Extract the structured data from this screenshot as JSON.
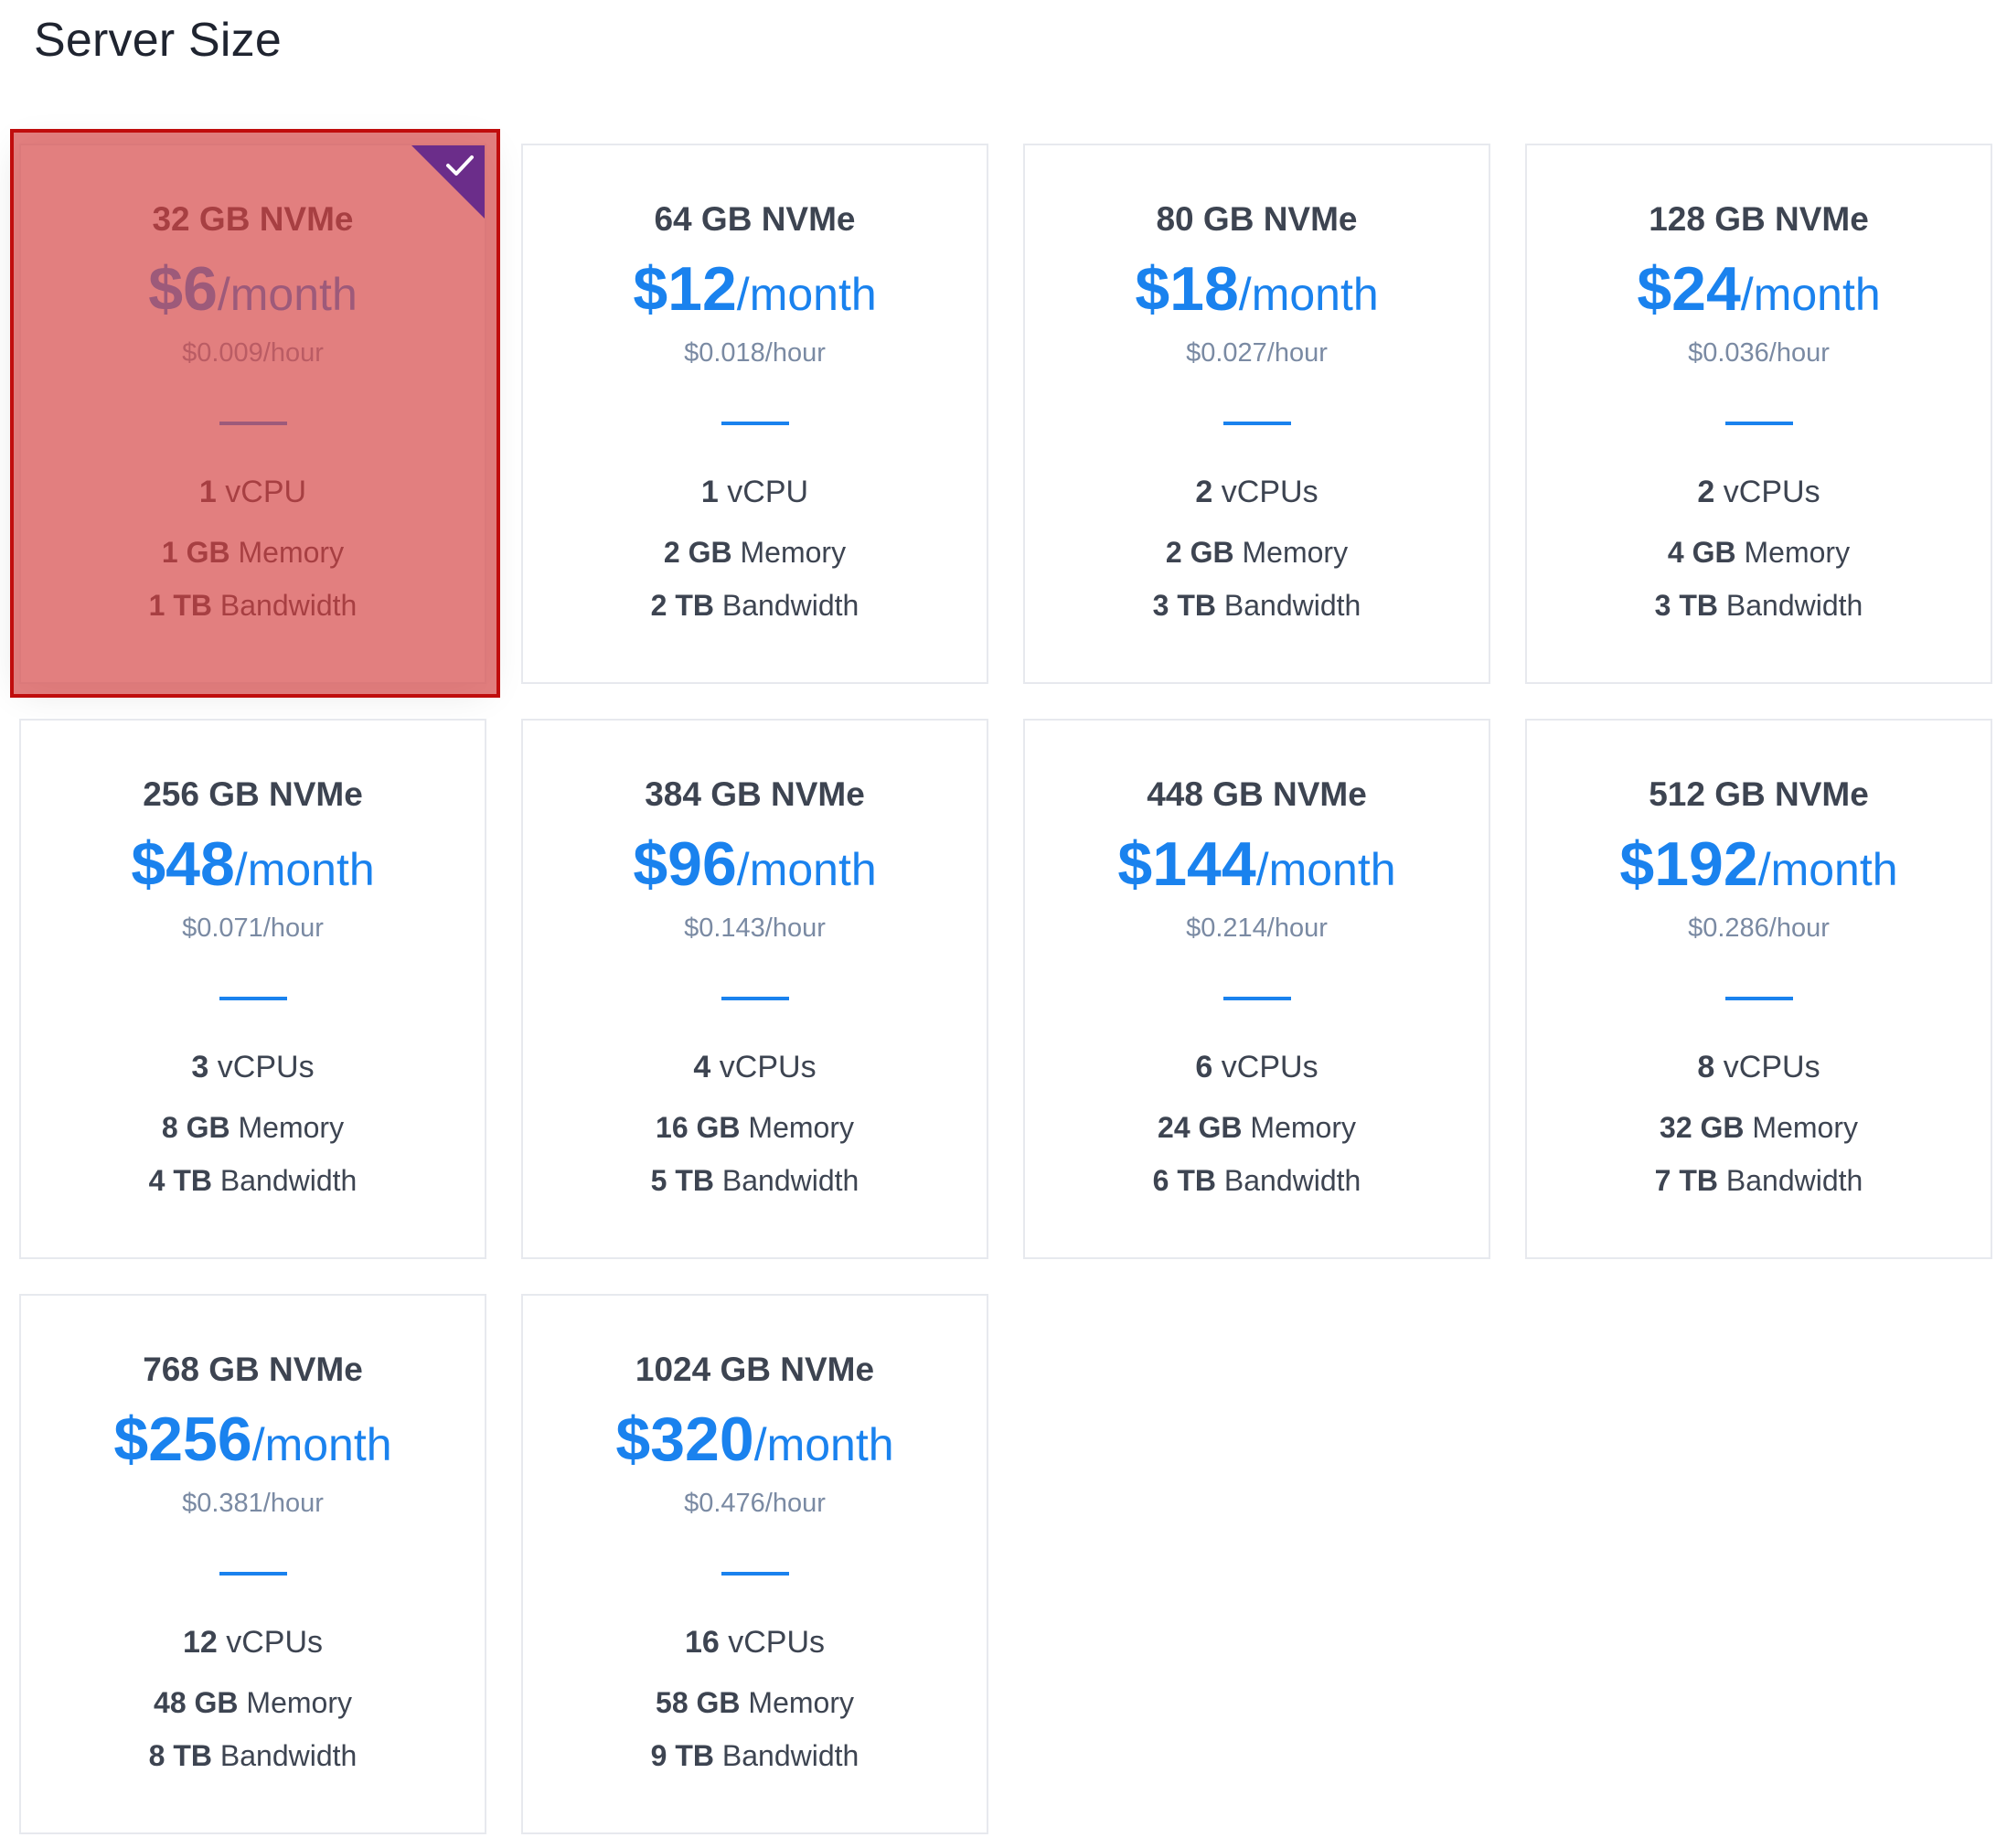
{
  "section_title": "Server Size",
  "colors": {
    "accent_blue": "#1a82ee",
    "selected_overlay": "#d64949",
    "check_corner": "#6b2d8a"
  },
  "plans": [
    {
      "disk": "32 GB NVMe",
      "price": "$6",
      "per": "/month",
      "hourly": "$0.009/hour",
      "cpu_num": "1",
      "cpu_unit": "vCPU",
      "mem_num": "1 GB",
      "mem_unit": "Memory",
      "bw_num": "1 TB",
      "bw_unit": "Bandwidth",
      "selected": true
    },
    {
      "disk": "64 GB NVMe",
      "price": "$12",
      "per": "/month",
      "hourly": "$0.018/hour",
      "cpu_num": "1",
      "cpu_unit": "vCPU",
      "mem_num": "2 GB",
      "mem_unit": "Memory",
      "bw_num": "2 TB",
      "bw_unit": "Bandwidth"
    },
    {
      "disk": "80 GB NVMe",
      "price": "$18",
      "per": "/month",
      "hourly": "$0.027/hour",
      "cpu_num": "2",
      "cpu_unit": "vCPUs",
      "mem_num": "2 GB",
      "mem_unit": "Memory",
      "bw_num": "3 TB",
      "bw_unit": "Bandwidth"
    },
    {
      "disk": "128 GB NVMe",
      "price": "$24",
      "per": "/month",
      "hourly": "$0.036/hour",
      "cpu_num": "2",
      "cpu_unit": "vCPUs",
      "mem_num": "4 GB",
      "mem_unit": "Memory",
      "bw_num": "3 TB",
      "bw_unit": "Bandwidth"
    },
    {
      "disk": "256 GB NVMe",
      "price": "$48",
      "per": "/month",
      "hourly": "$0.071/hour",
      "cpu_num": "3",
      "cpu_unit": "vCPUs",
      "mem_num": "8 GB",
      "mem_unit": "Memory",
      "bw_num": "4 TB",
      "bw_unit": "Bandwidth"
    },
    {
      "disk": "384 GB NVMe",
      "price": "$96",
      "per": "/month",
      "hourly": "$0.143/hour",
      "cpu_num": "4",
      "cpu_unit": "vCPUs",
      "mem_num": "16 GB",
      "mem_unit": "Memory",
      "bw_num": "5 TB",
      "bw_unit": "Bandwidth"
    },
    {
      "disk": "448 GB NVMe",
      "price": "$144",
      "per": "/month",
      "hourly": "$0.214/hour",
      "cpu_num": "6",
      "cpu_unit": "vCPUs",
      "mem_num": "24 GB",
      "mem_unit": "Memory",
      "bw_num": "6 TB",
      "bw_unit": "Bandwidth"
    },
    {
      "disk": "512 GB NVMe",
      "price": "$192",
      "per": "/month",
      "hourly": "$0.286/hour",
      "cpu_num": "8",
      "cpu_unit": "vCPUs",
      "mem_num": "32 GB",
      "mem_unit": "Memory",
      "bw_num": "7 TB",
      "bw_unit": "Bandwidth"
    },
    {
      "disk": "768 GB NVMe",
      "price": "$256",
      "per": "/month",
      "hourly": "$0.381/hour",
      "cpu_num": "12",
      "cpu_unit": "vCPUs",
      "mem_num": "48 GB",
      "mem_unit": "Memory",
      "bw_num": "8 TB",
      "bw_unit": "Bandwidth"
    },
    {
      "disk": "1024 GB NVMe",
      "price": "$320",
      "per": "/month",
      "hourly": "$0.476/hour",
      "cpu_num": "16",
      "cpu_unit": "vCPUs",
      "mem_num": "58 GB",
      "mem_unit": "Memory",
      "bw_num": "9 TB",
      "bw_unit": "Bandwidth"
    }
  ]
}
